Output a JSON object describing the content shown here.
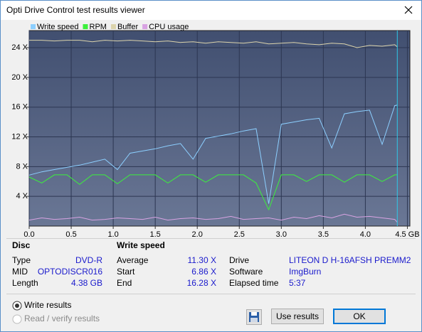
{
  "window": {
    "title": "Opti Drive Control test results viewer"
  },
  "chart_data": {
    "type": "line",
    "x": [
      0,
      0.15,
      0.3,
      0.45,
      0.6,
      0.75,
      0.9,
      1.05,
      1.2,
      1.35,
      1.5,
      1.65,
      1.8,
      1.95,
      2.1,
      2.25,
      2.4,
      2.55,
      2.7,
      2.85,
      3,
      3.15,
      3.3,
      3.45,
      3.6,
      3.75,
      3.9,
      4.05,
      4.2,
      4.35,
      4.38
    ],
    "series": [
      {
        "name": "Write speed",
        "color": "#8ccfff",
        "values": [
          6.86,
          7.3,
          7.6,
          7.9,
          8.2,
          8.6,
          9.0,
          7.6,
          9.8,
          10.1,
          10.4,
          10.8,
          11.1,
          9.0,
          11.8,
          12.1,
          12.4,
          12.8,
          13.1,
          3.0,
          13.7,
          14.0,
          14.3,
          14.5,
          10.5,
          15.1,
          15.4,
          15.6,
          11.0,
          16.2,
          16.28
        ]
      },
      {
        "name": "RPM",
        "color": "#3cf03c",
        "values": [
          6.6,
          5.8,
          6.9,
          6.9,
          5.6,
          6.9,
          6.9,
          5.7,
          6.9,
          6.9,
          6.9,
          5.8,
          6.9,
          6.9,
          5.9,
          6.9,
          6.9,
          6.9,
          5.8,
          2.2,
          6.9,
          6.9,
          6.0,
          6.9,
          6.9,
          5.9,
          6.9,
          6.9,
          6.0,
          6.9,
          6.9
        ]
      },
      {
        "name": "Buffer",
        "color": "#dcd4ac",
        "values": [
          25,
          25,
          24.9,
          25,
          25,
          24.8,
          25,
          24.9,
          25,
          24.9,
          24.8,
          24.9,
          24.7,
          24.8,
          24.6,
          24.8,
          24.7,
          24.6,
          24.8,
          24.5,
          24.6,
          24.7,
          24.5,
          24.4,
          24.6,
          24.5,
          24.0,
          24.3,
          24.2,
          24.4,
          24.1
        ]
      },
      {
        "name": "CPU usage",
        "color": "#d9a3e3",
        "values": [
          0.8,
          1.1,
          0.9,
          1.0,
          1.2,
          0.8,
          0.9,
          1.1,
          1.0,
          0.9,
          1.2,
          0.8,
          1.0,
          1.1,
          0.9,
          1.0,
          1.3,
          0.9,
          1.0,
          1.1,
          0.8,
          1.2,
          1.0,
          1.4,
          1.1,
          1.6,
          1.2,
          1.3,
          1.1,
          0.9,
          0.5
        ]
      }
    ],
    "xlim": [
      0,
      4.53
    ],
    "xticks": [
      {
        "value": 0,
        "label": "0.0"
      },
      0.5,
      {
        "value": 1,
        "label": "1.0"
      },
      1.5,
      {
        "value": 2,
        "label": "2.0"
      },
      2.5,
      {
        "value": 3,
        "label": "3.0"
      },
      3.5,
      {
        "value": 4,
        "label": "4.0"
      },
      {
        "value": 4.5,
        "label": "4.5 GB"
      }
    ],
    "ylim": [
      0,
      26.3
    ],
    "yticks": [
      {
        "value": 4,
        "label": "4 X"
      },
      {
        "value": 8,
        "label": "8 X"
      },
      {
        "value": 12,
        "label": "12 X"
      },
      {
        "value": 16,
        "label": "16 X"
      },
      {
        "value": 20,
        "label": "20 X"
      },
      {
        "value": 24,
        "label": "24 X"
      }
    ],
    "grid": true
  },
  "disc": {
    "heading": "Disc",
    "rows": [
      [
        "Type",
        "DVD-R"
      ],
      [
        "MID",
        "OPTODISCR016"
      ],
      [
        "Length",
        "4.38 GB"
      ]
    ]
  },
  "write_speed": {
    "heading": "Write speed",
    "rows": [
      [
        "Average",
        "11.30 X"
      ],
      [
        "Start",
        "6.86 X"
      ],
      [
        "End",
        "16.28 X"
      ]
    ]
  },
  "drive_info": {
    "rows": [
      [
        "Drive",
        "LITEON D H-16AFSH PREMM2"
      ],
      [
        "Software",
        "ImgBurn"
      ],
      [
        "Elapsed time",
        "5:37"
      ]
    ]
  },
  "options": [
    "Write results",
    "Read / verify results"
  ],
  "buttons": [
    "Use results",
    "OK"
  ]
}
